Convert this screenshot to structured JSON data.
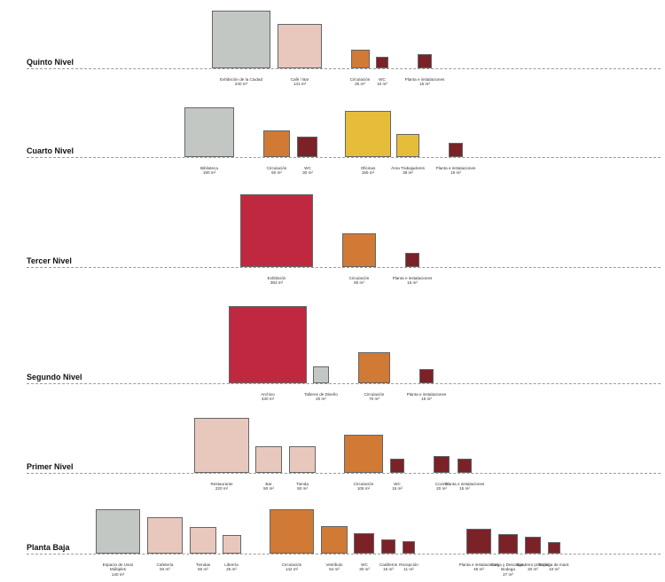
{
  "levels": [
    {
      "name": "Quinto Nivel",
      "spaces": [
        {
          "name": "Exhibición de la Ciudad",
          "area": 240,
          "area_label": "240 m²",
          "color": "#c3c7c4"
        },
        {
          "name": "Café / Bar",
          "area": 141,
          "area_label": "141 m²",
          "color": "#e8c8bd"
        },
        {
          "name": "Circulación",
          "area": 25,
          "area_label": "25 m²",
          "color": "#d07a35"
        },
        {
          "name": "WC",
          "area": 10,
          "area_label": "10 m²",
          "color": "#7a2228"
        },
        {
          "name": "Planta e instalaciones",
          "area": 15,
          "area_label": "15 m²",
          "color": "#7a2228"
        }
      ]
    },
    {
      "name": "Cuarto Nivel",
      "spaces": [
        {
          "name": "Biblioteca",
          "area": 180,
          "area_label": "180 m²",
          "color": "#c3c7c4"
        },
        {
          "name": "Circulación",
          "area": 50,
          "area_label": "50 m²",
          "color": "#d07a35"
        },
        {
          "name": "WC",
          "area": 30,
          "area_label": "30 m²",
          "color": "#7a2228"
        },
        {
          "name": "Oficinas",
          "area": 155,
          "area_label": "155 m²",
          "color": "#e6bd3a"
        },
        {
          "name": "Área Trabajadores",
          "area": 38,
          "area_label": "38 m²",
          "color": "#e6bd3a"
        },
        {
          "name": "Planta e instalaciones",
          "area": 15,
          "area_label": "15 m²",
          "color": "#7a2228"
        }
      ]
    },
    {
      "name": "Tercer Nivel",
      "spaces": [
        {
          "name": "Exhibición",
          "area": 383,
          "area_label": "383 m²",
          "color": "#c0283f"
        },
        {
          "name": "Circulación",
          "area": 80,
          "area_label": "80 m²",
          "color": "#d07a35"
        },
        {
          "name": "Planta e instalaciones",
          "area": 15,
          "area_label": "15 m²",
          "color": "#7a2228"
        }
      ]
    },
    {
      "name": "Segundo Nivel",
      "spaces": [
        {
          "name": "Archivo",
          "area": 430,
          "area_label": "430 m²",
          "color": "#c0283f"
        },
        {
          "name": "Talleres de Diseño",
          "area": 20,
          "area_label": "20 m²",
          "color": "#c3c7c4"
        },
        {
          "name": "Circulación",
          "area": 70,
          "area_label": "70 m²",
          "color": "#d07a35"
        },
        {
          "name": "Planta e instalaciones",
          "area": 15,
          "area_label": "15 m²",
          "color": "#7a2228"
        }
      ]
    },
    {
      "name": "Primer Nivel",
      "spaces": [
        {
          "name": "Restaurante",
          "area": 220,
          "area_label": "220 m²",
          "color": "#e8c8bd"
        },
        {
          "name": "Bar",
          "area": 50,
          "area_label": "50 m²",
          "color": "#e8c8bd"
        },
        {
          "name": "Tienda",
          "area": 50,
          "area_label": "50 m²",
          "color": "#e8c8bd"
        },
        {
          "name": "Circulación",
          "area": 106,
          "area_label": "106 m²",
          "color": "#d07a35"
        },
        {
          "name": "WC",
          "area": 15,
          "area_label": "15 m²",
          "color": "#7a2228"
        },
        {
          "name": "Cocina",
          "area": 20,
          "area_label": "20 m²",
          "color": "#7a2228"
        },
        {
          "name": "Planta e instalaciones",
          "area": 15,
          "area_label": "15 m²",
          "color": "#7a2228"
        }
      ]
    },
    {
      "name": "Planta Baja",
      "spaces": [
        {
          "name": "Espacio de Usos Múltiples",
          "area": 140,
          "area_label": "140 m²",
          "color": "#c3c7c4"
        },
        {
          "name": "Cafetería",
          "area": 94,
          "area_label": "94 m²",
          "color": "#e8c8bd"
        },
        {
          "name": "Tiendas",
          "area": 50,
          "area_label": "50 m²",
          "color": "#e8c8bd"
        },
        {
          "name": "Librería",
          "area": 25,
          "area_label": "25 m²",
          "color": "#e8c8bd"
        },
        {
          "name": "Circulación",
          "area": 142,
          "area_label": "142 m²",
          "color": "#d07a35"
        },
        {
          "name": "Vestíbulo",
          "area": 54,
          "area_label": "54 m²",
          "color": "#d07a35"
        },
        {
          "name": "WC",
          "area": 30,
          "area_label": "30 m²",
          "color": "#7a2228"
        },
        {
          "name": "Casilleros",
          "area": 15,
          "area_label": "15 m²",
          "color": "#7a2228"
        },
        {
          "name": "Recepción",
          "area": 11,
          "area_label": "11 m²",
          "color": "#7a2228"
        },
        {
          "name": "Planta e instalaciones",
          "area": 45,
          "area_label": "45 m²",
          "color": "#7a2228"
        },
        {
          "name": "Carga y Descarga / Bodega",
          "area": 27,
          "area_label": "27 m²",
          "color": "#7a2228"
        },
        {
          "name": "Basurero principal",
          "area": 20,
          "area_label": "20 m²",
          "color": "#7a2228"
        },
        {
          "name": "Bodega de mant.",
          "area": 10,
          "area_label": "10 m²",
          "color": "#7a2228"
        }
      ]
    }
  ]
}
